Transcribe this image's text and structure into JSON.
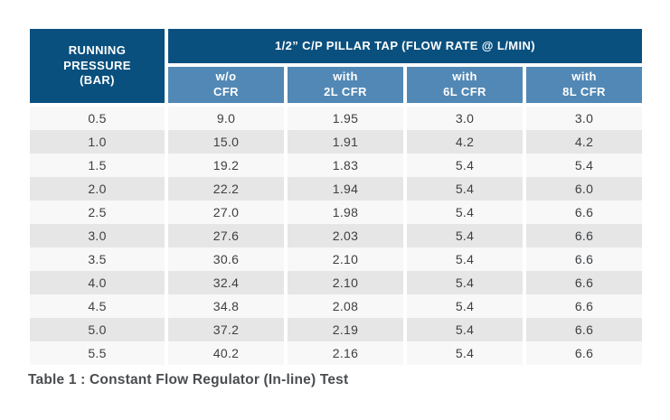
{
  "table": {
    "caption": "Table 1 : Constant Flow Regulator (In-line) Test",
    "header": {
      "row_label": "RUNNING\nPRESSURE\n(BAR)",
      "group_label": "1/2” C/P PILLAR TAP (FLOW RATE @ L/MIN)",
      "columns": [
        "w/o\nCFR",
        "with\n2L CFR",
        "with\n6L CFR",
        "with\n8L CFR"
      ]
    },
    "rows": [
      [
        "0.5",
        "9.0",
        "1.95",
        "3.0",
        "3.0"
      ],
      [
        "1.0",
        "15.0",
        "1.91",
        "4.2",
        "4.2"
      ],
      [
        "1.5",
        "19.2",
        "1.83",
        "5.4",
        "5.4"
      ],
      [
        "2.0",
        "22.2",
        "1.94",
        "5.4",
        "6.0"
      ],
      [
        "2.5",
        "27.0",
        "1.98",
        "5.4",
        "6.6"
      ],
      [
        "3.0",
        "27.6",
        "2.03",
        "5.4",
        "6.6"
      ],
      [
        "3.5",
        "30.6",
        "2.10",
        "5.4",
        "6.6"
      ],
      [
        "4.0",
        "32.4",
        "2.10",
        "5.4",
        "6.6"
      ],
      [
        "4.5",
        "34.8",
        "2.08",
        "5.4",
        "6.6"
      ],
      [
        "5.0",
        "37.2",
        "2.19",
        "5.4",
        "6.6"
      ],
      [
        "5.5",
        "40.2",
        "2.16",
        "5.4",
        "6.6"
      ]
    ],
    "colors": {
      "header_dark": "#0a507e",
      "header_light": "#5288b5",
      "header_text": "#ffffff",
      "row_light": "#f8f8f8",
      "row_dark": "#e6e6e6",
      "cell_text": "#3d3f42",
      "caption_text": "#4a4d4f"
    }
  },
  "chart_data": {
    "type": "table",
    "title": "1/2” C/P PILLAR TAP (FLOW RATE @ L/MIN)",
    "caption": "Table 1 : Constant Flow Regulator (In-line) Test",
    "columns": [
      "RUNNING PRESSURE (BAR)",
      "w/o CFR",
      "with 2L CFR",
      "with 6L CFR",
      "with 8L CFR"
    ],
    "rows": [
      [
        0.5,
        9.0,
        1.95,
        3.0,
        3.0
      ],
      [
        1.0,
        15.0,
        1.91,
        4.2,
        4.2
      ],
      [
        1.5,
        19.2,
        1.83,
        5.4,
        5.4
      ],
      [
        2.0,
        22.2,
        1.94,
        5.4,
        6.0
      ],
      [
        2.5,
        27.0,
        1.98,
        5.4,
        6.6
      ],
      [
        3.0,
        27.6,
        2.03,
        5.4,
        6.6
      ],
      [
        3.5,
        30.6,
        2.1,
        5.4,
        6.6
      ],
      [
        4.0,
        32.4,
        2.1,
        5.4,
        6.6
      ],
      [
        4.5,
        34.8,
        2.08,
        5.4,
        6.6
      ],
      [
        5.0,
        37.2,
        2.19,
        5.4,
        6.6
      ],
      [
        5.5,
        40.2,
        2.16,
        5.4,
        6.6
      ]
    ],
    "units": {
      "pressure": "BAR",
      "flow_rate": "L/MIN"
    }
  }
}
